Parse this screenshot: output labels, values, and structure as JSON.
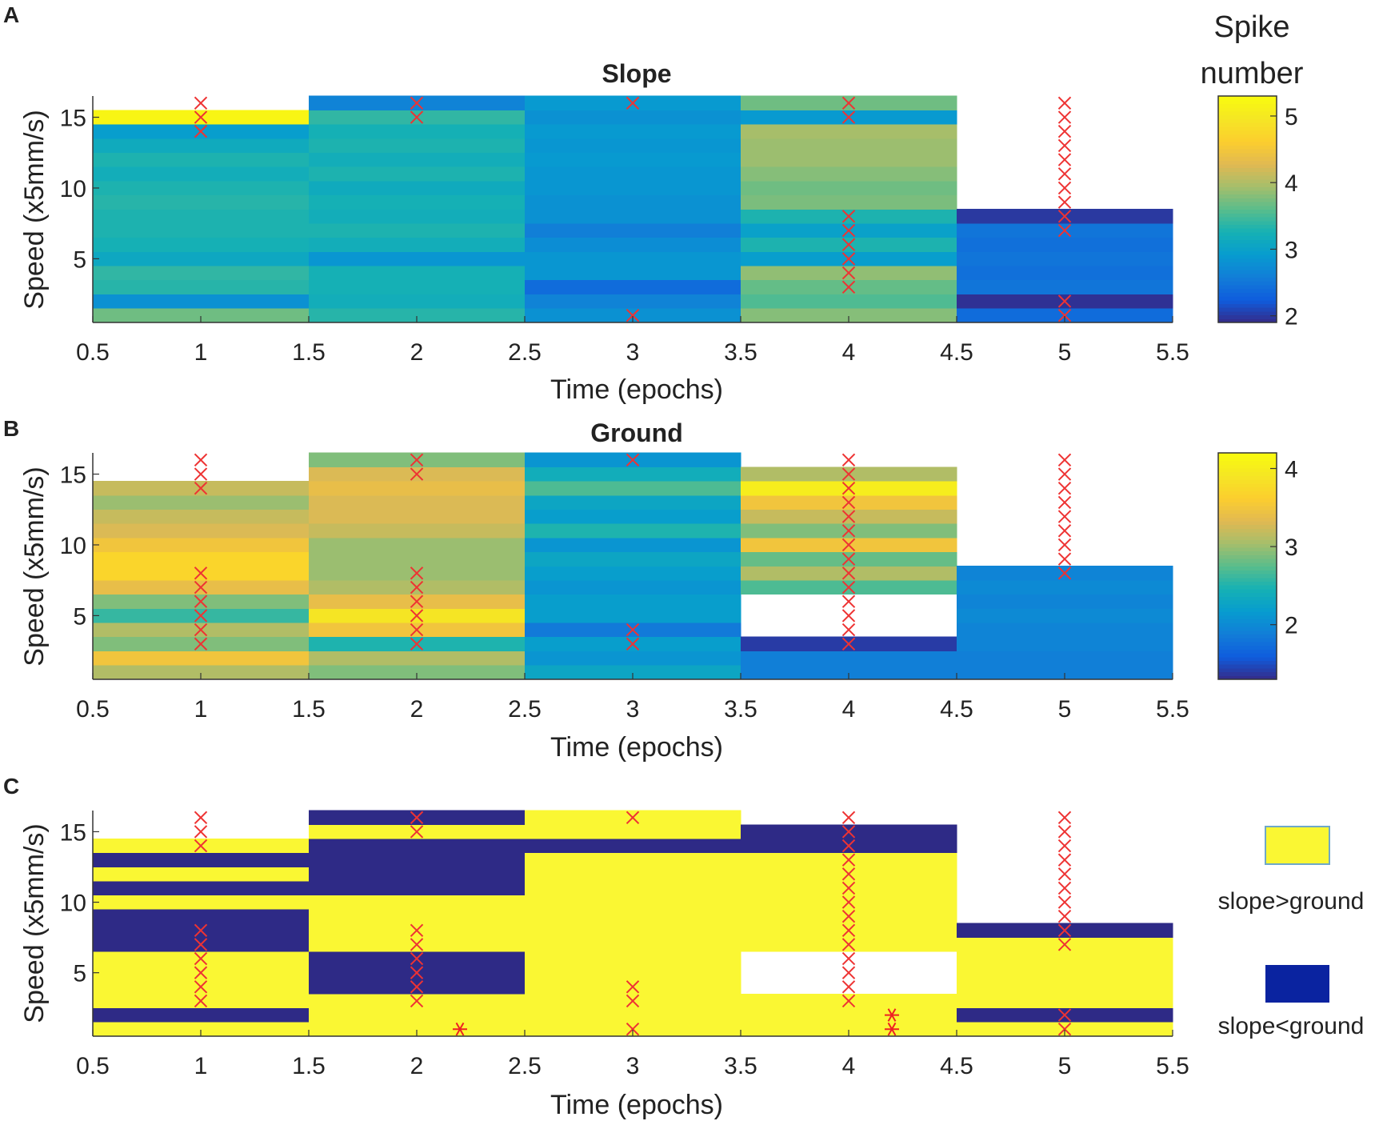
{
  "panels": {
    "a": {
      "letter": "A",
      "title": "Slope"
    },
    "b": {
      "letter": "B",
      "title": "Ground"
    },
    "c": {
      "letter": "C",
      "title": ""
    }
  },
  "colorbar": {
    "title_line1": "Spike",
    "title_line2": "number"
  },
  "legend": {
    "items": [
      {
        "label": "slope>ground",
        "color": "#FAF733"
      },
      {
        "label": "slope<ground",
        "color": "#0A23A0"
      }
    ]
  },
  "chart_data": [
    {
      "id": "a",
      "type": "heatmap",
      "title": "Slope",
      "xlabel": "Time (epochs)",
      "ylabel": "Speed (x5mm/s)",
      "xlim": [
        0.5,
        5.5
      ],
      "ylim": [
        0.5,
        16.5
      ],
      "xticks": [
        0.5,
        1,
        1.5,
        2,
        2.5,
        3,
        3.5,
        4,
        4.5,
        5,
        5.5
      ],
      "yticks": [
        5,
        10,
        15
      ],
      "colorbar": {
        "label": "Spike number",
        "range": [
          1.9,
          5.3
        ],
        "ticks": [
          2,
          3,
          4,
          5
        ]
      },
      "epochs": [
        1,
        2,
        3,
        4,
        5
      ],
      "speeds": [
        1,
        2,
        3,
        4,
        5,
        6,
        7,
        8,
        9,
        10,
        11,
        12,
        13,
        14,
        15,
        16
      ],
      "values": [
        [
          3.7,
          2.8,
          3.35,
          3.4,
          3.1,
          3.25,
          3.3,
          3.3,
          3.35,
          3.3,
          3.2,
          3.3,
          3.15,
          2.95,
          5.2,
          null
        ],
        [
          3.35,
          3.2,
          3.25,
          3.25,
          2.85,
          3.2,
          3.3,
          3.2,
          3.25,
          3.15,
          3.3,
          3.2,
          3.3,
          3.25,
          3.4,
          2.65
        ],
        [
          2.8,
          2.65,
          2.4,
          2.85,
          2.85,
          2.75,
          2.6,
          2.8,
          2.8,
          2.85,
          2.85,
          2.9,
          2.85,
          2.9,
          2.8,
          2.9
        ],
        [
          3.8,
          3.55,
          3.65,
          3.85,
          2.95,
          3.3,
          3.0,
          3.3,
          3.75,
          3.7,
          3.8,
          3.9,
          3.9,
          3.95,
          2.9,
          3.7
        ],
        [
          2.4,
          1.95,
          2.5,
          2.45,
          2.5,
          2.45,
          2.5,
          2.0,
          null,
          null,
          null,
          null,
          null,
          null,
          null,
          null
        ]
      ],
      "markers": {
        "x": [
          [
            1,
            14
          ],
          [
            1,
            15
          ],
          [
            1,
            16
          ],
          [
            2,
            15
          ],
          [
            2,
            16
          ],
          [
            3,
            1
          ],
          [
            3,
            16
          ],
          [
            4,
            3
          ],
          [
            4,
            4
          ],
          [
            4,
            5
          ],
          [
            4,
            6
          ],
          [
            4,
            7
          ],
          [
            4,
            8
          ],
          [
            4,
            15
          ],
          [
            4,
            16
          ],
          [
            5,
            1
          ],
          [
            5,
            2
          ],
          [
            5,
            7
          ],
          [
            5,
            8
          ],
          [
            5,
            9
          ],
          [
            5,
            10
          ],
          [
            5,
            11
          ],
          [
            5,
            12
          ],
          [
            5,
            13
          ],
          [
            5,
            14
          ],
          [
            5,
            15
          ],
          [
            5,
            16
          ]
        ],
        "star": []
      }
    },
    {
      "id": "b",
      "type": "heatmap",
      "title": "Ground",
      "xlabel": "Time (epochs)",
      "ylabel": "Speed (x5mm/s)",
      "xlim": [
        0.5,
        5.5
      ],
      "ylim": [
        0.5,
        16.5
      ],
      "xticks": [
        0.5,
        1,
        1.5,
        2,
        2.5,
        3,
        3.5,
        4,
        4.5,
        5,
        5.5
      ],
      "yticks": [
        5,
        10,
        15
      ],
      "colorbar": {
        "label": "Spike number",
        "range": [
          1.3,
          4.2
        ],
        "ticks": [
          2,
          3,
          4
        ]
      },
      "epochs": [
        1,
        2,
        3,
        4,
        5
      ],
      "speeds": [
        1,
        2,
        3,
        4,
        5,
        6,
        7,
        8,
        9,
        10,
        11,
        12,
        13,
        14,
        15,
        16
      ],
      "values": [
        [
          3.1,
          3.5,
          2.9,
          3.1,
          2.6,
          2.9,
          3.4,
          3.7,
          3.7,
          3.5,
          3.3,
          3.2,
          3.0,
          3.2,
          null,
          null
        ],
        [
          2.9,
          3.1,
          2.5,
          3.5,
          3.9,
          3.4,
          3.1,
          3.0,
          3.0,
          3.0,
          3.2,
          3.3,
          3.3,
          3.4,
          3.3,
          2.9
        ],
        [
          2.3,
          2.1,
          2.2,
          1.85,
          2.2,
          2.2,
          2.1,
          2.2,
          2.3,
          2.1,
          2.5,
          2.2,
          2.3,
          2.7,
          2.4,
          2.1
        ],
        [
          1.9,
          1.9,
          1.4,
          null,
          null,
          null,
          2.7,
          3.1,
          2.8,
          3.5,
          2.9,
          3.2,
          3.5,
          4.0,
          3.1,
          null
        ],
        [
          1.9,
          1.9,
          1.95,
          1.95,
          2.0,
          1.95,
          2.0,
          1.95,
          null,
          null,
          null,
          null,
          null,
          null,
          null,
          null
        ]
      ],
      "markers": {
        "x": [
          [
            1,
            3
          ],
          [
            1,
            4
          ],
          [
            1,
            5
          ],
          [
            1,
            6
          ],
          [
            1,
            7
          ],
          [
            1,
            8
          ],
          [
            1,
            14
          ],
          [
            1,
            15
          ],
          [
            1,
            16
          ],
          [
            2,
            3
          ],
          [
            2,
            4
          ],
          [
            2,
            5
          ],
          [
            2,
            6
          ],
          [
            2,
            7
          ],
          [
            2,
            8
          ],
          [
            2,
            15
          ],
          [
            2,
            16
          ],
          [
            3,
            3
          ],
          [
            3,
            4
          ],
          [
            3,
            16
          ],
          [
            4,
            3
          ],
          [
            4,
            4
          ],
          [
            4,
            5
          ],
          [
            4,
            6
          ],
          [
            4,
            7
          ],
          [
            4,
            8
          ],
          [
            4,
            9
          ],
          [
            4,
            10
          ],
          [
            4,
            11
          ],
          [
            4,
            12
          ],
          [
            4,
            13
          ],
          [
            4,
            14
          ],
          [
            4,
            15
          ],
          [
            4,
            16
          ],
          [
            5,
            8
          ],
          [
            5,
            9
          ],
          [
            5,
            10
          ],
          [
            5,
            11
          ],
          [
            5,
            12
          ],
          [
            5,
            13
          ],
          [
            5,
            14
          ],
          [
            5,
            15
          ],
          [
            5,
            16
          ]
        ],
        "star": []
      }
    },
    {
      "id": "c",
      "type": "heatmap",
      "title": "",
      "xlabel": "Time (epochs)",
      "ylabel": "Speed (x5mm/s)",
      "xlim": [
        0.5,
        5.5
      ],
      "ylim": [
        0.5,
        16.5
      ],
      "xticks": [
        0.5,
        1,
        1.5,
        2,
        2.5,
        3,
        3.5,
        4,
        4.5,
        5,
        5.5
      ],
      "yticks": [
        5,
        10,
        15
      ],
      "categories": {
        "1": "slope>ground",
        "0": "slope<ground"
      },
      "epochs": [
        1,
        2,
        3,
        4,
        5
      ],
      "speeds": [
        1,
        2,
        3,
        4,
        5,
        6,
        7,
        8,
        9,
        10,
        11,
        12,
        13,
        14,
        15,
        16
      ],
      "values": [
        [
          1,
          0,
          1,
          1,
          1,
          1,
          0,
          0,
          0,
          1,
          0,
          1,
          0,
          1,
          null,
          null
        ],
        [
          1,
          1,
          1,
          0,
          0,
          0,
          1,
          1,
          1,
          1,
          0,
          0,
          0,
          0,
          1,
          0
        ],
        [
          1,
          1,
          1,
          1,
          1,
          1,
          1,
          1,
          1,
          1,
          1,
          1,
          1,
          0,
          1,
          1
        ],
        [
          1,
          1,
          1,
          null,
          null,
          null,
          1,
          1,
          1,
          1,
          1,
          1,
          1,
          0,
          0,
          null
        ],
        [
          1,
          0,
          1,
          1,
          1,
          1,
          1,
          0,
          null,
          null,
          null,
          null,
          null,
          null,
          null,
          null
        ]
      ],
      "markers": {
        "x": [
          [
            1,
            3
          ],
          [
            1,
            4
          ],
          [
            1,
            5
          ],
          [
            1,
            6
          ],
          [
            1,
            7
          ],
          [
            1,
            8
          ],
          [
            1,
            14
          ],
          [
            1,
            15
          ],
          [
            1,
            16
          ],
          [
            2,
            3
          ],
          [
            2,
            4
          ],
          [
            2,
            5
          ],
          [
            2,
            6
          ],
          [
            2,
            7
          ],
          [
            2,
            8
          ],
          [
            2,
            15
          ],
          [
            2,
            16
          ],
          [
            3,
            1
          ],
          [
            3,
            3
          ],
          [
            3,
            4
          ],
          [
            3,
            16
          ],
          [
            4,
            3
          ],
          [
            4,
            4
          ],
          [
            4,
            5
          ],
          [
            4,
            6
          ],
          [
            4,
            7
          ],
          [
            4,
            8
          ],
          [
            4,
            9
          ],
          [
            4,
            10
          ],
          [
            4,
            11
          ],
          [
            4,
            12
          ],
          [
            4,
            13
          ],
          [
            4,
            14
          ],
          [
            4,
            15
          ],
          [
            4,
            16
          ],
          [
            5,
            1
          ],
          [
            5,
            2
          ],
          [
            5,
            7
          ],
          [
            5,
            8
          ],
          [
            5,
            9
          ],
          [
            5,
            10
          ],
          [
            5,
            11
          ],
          [
            5,
            12
          ],
          [
            5,
            13
          ],
          [
            5,
            14
          ],
          [
            5,
            15
          ],
          [
            5,
            16
          ]
        ],
        "star": [
          [
            2.2,
            1
          ],
          [
            4.2,
            1
          ],
          [
            4.2,
            2
          ]
        ]
      }
    }
  ]
}
